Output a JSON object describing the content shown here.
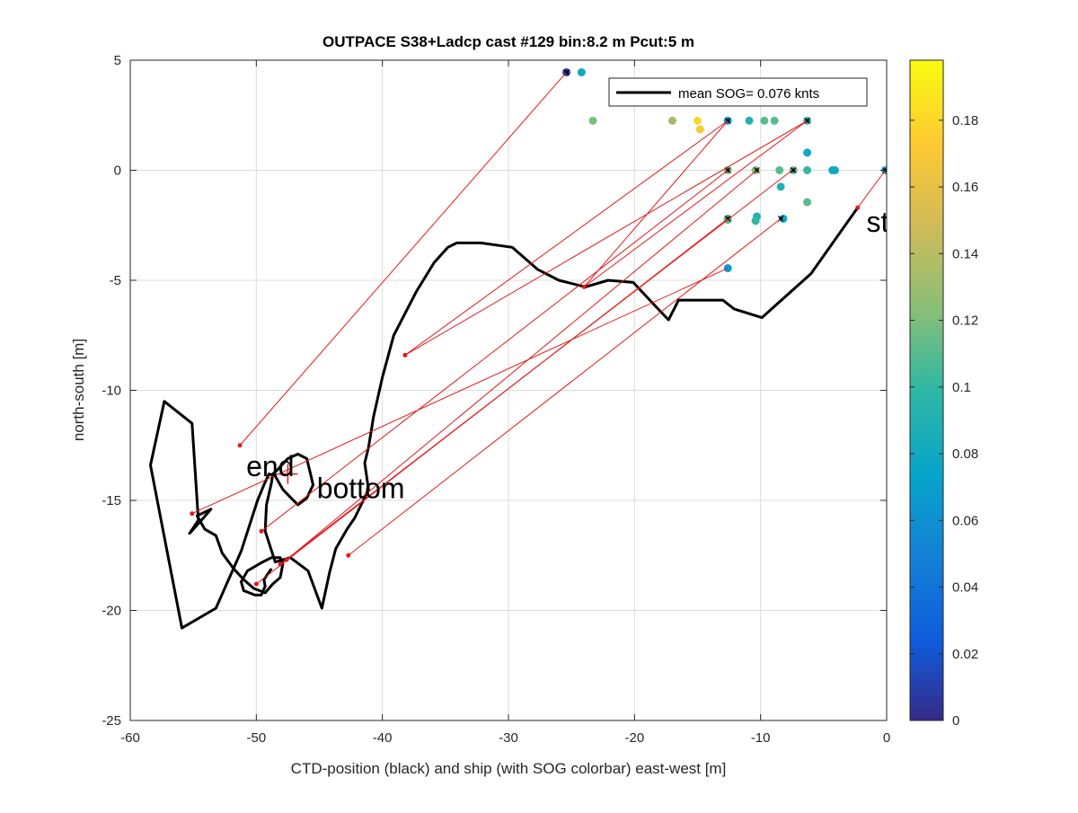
{
  "chart_data": {
    "type": "line",
    "title": "OUTPACE S38+Ladcp cast #129 bin:8.2 m  Pcut:5 m",
    "xlabel": "CTD-position (black) and ship (with SOG colorbar) east-west [m]",
    "ylabel": "north-south [m]",
    "xlim": [
      -60,
      0
    ],
    "ylim": [
      -25,
      5
    ],
    "xticks": [
      -60,
      -50,
      -40,
      -30,
      -20,
      -10,
      0
    ],
    "yticks": [
      -25,
      -20,
      -15,
      -10,
      -5,
      0,
      5
    ],
    "grid": true,
    "legend": {
      "placement": "top-right",
      "entries": [
        "mean SOG=  0.076 knts"
      ]
    },
    "colorbar": {
      "range": [
        0,
        0.198
      ],
      "ticks": [
        0,
        0.02,
        0.04,
        0.06,
        0.08,
        0.1,
        0.12,
        0.14,
        0.16,
        0.18
      ],
      "tick_labels": [
        "0",
        "0.02",
        "0.04",
        "0.06",
        "0.08",
        "0.1",
        "0.12",
        "0.14",
        "0.16",
        "0.18"
      ]
    },
    "ctd_track": {
      "color": "#000000",
      "x": [
        -2.3,
        -6.0,
        -9.9,
        -12.1,
        -13.0,
        -16.5,
        -17.3,
        -18.3,
        -20.1,
        -22.1,
        -23.9,
        -26.0,
        -27.7,
        -29.7,
        -32.2,
        -34.1,
        -34.8,
        -35.9,
        -37.3,
        -39.1,
        -40.0,
        -40.7,
        -41.1,
        -41.4,
        -41.1,
        -41.6,
        -42.2,
        -42.8,
        -43.7,
        -44.2,
        -44.8,
        -45.9,
        -47.3,
        -48.5,
        -49.3,
        -49.2,
        -48.8,
        -48.7,
        -48.3,
        -48.0,
        -47.5,
        -46.7,
        -46.0,
        -45.7,
        -45.5,
        -46.0,
        -46.7,
        -47.4,
        -47.9,
        -48.5,
        -49.0,
        -49.4,
        -49.9,
        -51.2,
        -53.2,
        -55.9,
        -58.4,
        -57.3,
        -55.1,
        -54.6,
        -55.3,
        -54.2,
        -53.6,
        -54.7,
        -54.1,
        -53.2,
        -52.7,
        -51.8,
        -51.0,
        -50.2,
        -49.3,
        -48.7,
        -48.1,
        -47.9,
        -48.1,
        -48.8,
        -49.5,
        -50.7,
        -51.2,
        -51.0,
        -50.1,
        -49.6,
        -49.3,
        -49.4,
        -48.8
      ],
      "y": [
        -1.7,
        -4.7,
        -6.7,
        -6.3,
        -5.9,
        -5.9,
        -6.8,
        -6.2,
        -5.1,
        -5.0,
        -5.3,
        -5.0,
        -4.5,
        -3.5,
        -3.3,
        -3.3,
        -3.5,
        -4.2,
        -5.5,
        -7.5,
        -9.4,
        -11.2,
        -12.6,
        -13.3,
        -14.5,
        -15.1,
        -15.8,
        -16.3,
        -17.2,
        -18.3,
        -19.9,
        -18.2,
        -17.6,
        -17.8,
        -16.4,
        -15.2,
        -14.2,
        -13.8,
        -13.6,
        -13.4,
        -13.1,
        -12.9,
        -13.1,
        -13.8,
        -14.3,
        -14.9,
        -15.2,
        -14.8,
        -14.5,
        -13.9,
        -13.8,
        -14.3,
        -15.0,
        -17.3,
        -19.9,
        -20.8,
        -13.4,
        -10.5,
        -11.5,
        -15.9,
        -16.5,
        -15.8,
        -15.4,
        -15.7,
        -16.3,
        -16.6,
        -17.4,
        -18.1,
        -18.6,
        -19.0,
        -19.2,
        -18.8,
        -18.5,
        -17.9,
        -17.6,
        -17.6,
        -17.8,
        -18.2,
        -18.7,
        -19.1,
        -19.3,
        -19.3,
        -18.9,
        -18.6,
        -18.1
      ]
    },
    "ship_positions": {
      "x": [
        -25.4,
        -24.2,
        -23.3,
        -17.0,
        -15.0,
        -14.8,
        -12.6,
        -12.6,
        -12.6,
        -12.6,
        -12.6,
        -10.9,
        -10.4,
        -10.3,
        -10.4,
        -9.7,
        -8.9,
        -8.5,
        -8.4,
        -8.2,
        -7.4,
        -6.3,
        -6.3,
        -6.3,
        -6.3,
        -4.1,
        -4.3,
        -0.1
      ],
      "y": [
        4.45,
        4.45,
        2.25,
        2.25,
        2.25,
        1.85,
        2.25,
        0.0,
        -2.2,
        -2.25,
        -4.45,
        2.25,
        0.0,
        -2.1,
        -2.3,
        2.25,
        2.25,
        0.0,
        -0.75,
        -2.2,
        0.0,
        2.25,
        0.8,
        0.0,
        -1.45,
        0.0,
        0.0,
        0.0
      ],
      "sog": [
        0.01,
        0.08,
        0.12,
        0.13,
        0.18,
        0.17,
        0.07,
        0.12,
        0.1,
        0.11,
        0.07,
        0.09,
        0.12,
        0.09,
        0.1,
        0.11,
        0.11,
        0.11,
        0.09,
        0.08,
        0.11,
        0.1,
        0.08,
        0.1,
        0.11,
        0.08,
        0.08,
        0.08
      ]
    },
    "markers_black": {
      "x": [
        -25.4,
        -12.6,
        -12.6,
        -12.6,
        -10.3,
        -8.4,
        -7.4,
        -6.3,
        -0.1
      ],
      "y": [
        4.45,
        2.25,
        0.0,
        -2.2,
        0.0,
        -2.2,
        0.0,
        2.25,
        0.0
      ]
    },
    "connectors": {
      "color": "#e31a1c",
      "segments": [
        [
          -51.3,
          -12.5,
          -25.4,
          4.45
        ],
        [
          -55.1,
          -15.6,
          -12.6,
          -4.45
        ],
        [
          -50.0,
          -18.8,
          -12.6,
          -2.2
        ],
        [
          -49.6,
          -16.4,
          -12.6,
          0.0
        ],
        [
          -47.6,
          -17.7,
          -10.3,
          0.0
        ],
        [
          -48.1,
          -17.9,
          -7.5,
          0.0
        ],
        [
          -42.7,
          -17.5,
          -8.4,
          -2.2
        ],
        [
          -38.2,
          -8.4,
          -6.3,
          2.25
        ],
        [
          -38.2,
          -8.4,
          -12.6,
          2.25
        ],
        [
          -24.0,
          -5.3,
          -12.6,
          2.25
        ],
        [
          -24.0,
          -5.3,
          -6.3,
          2.25
        ],
        [
          -2.3,
          -1.7,
          -0.1,
          0.0
        ]
      ],
      "dots": {
        "x": [
          -51.3,
          -55.1,
          -50.0,
          -49.6,
          -47.6,
          -48.1,
          -42.7,
          -38.2,
          -24.0,
          -2.3
        ],
        "y": [
          -12.5,
          -15.6,
          -18.8,
          -16.4,
          -17.7,
          -17.9,
          -17.5,
          -8.4,
          -5.3,
          -1.7
        ]
      }
    },
    "annotations": [
      {
        "text": "start",
        "x": -1.6,
        "y": -2.3
      },
      {
        "text": "end",
        "x": -50.8,
        "y": -13.4
      },
      {
        "text": "bottom",
        "x": -45.2,
        "y": -14.4
      }
    ],
    "bottom_marker": {
      "x": -47.5,
      "y": -13.8
    }
  }
}
